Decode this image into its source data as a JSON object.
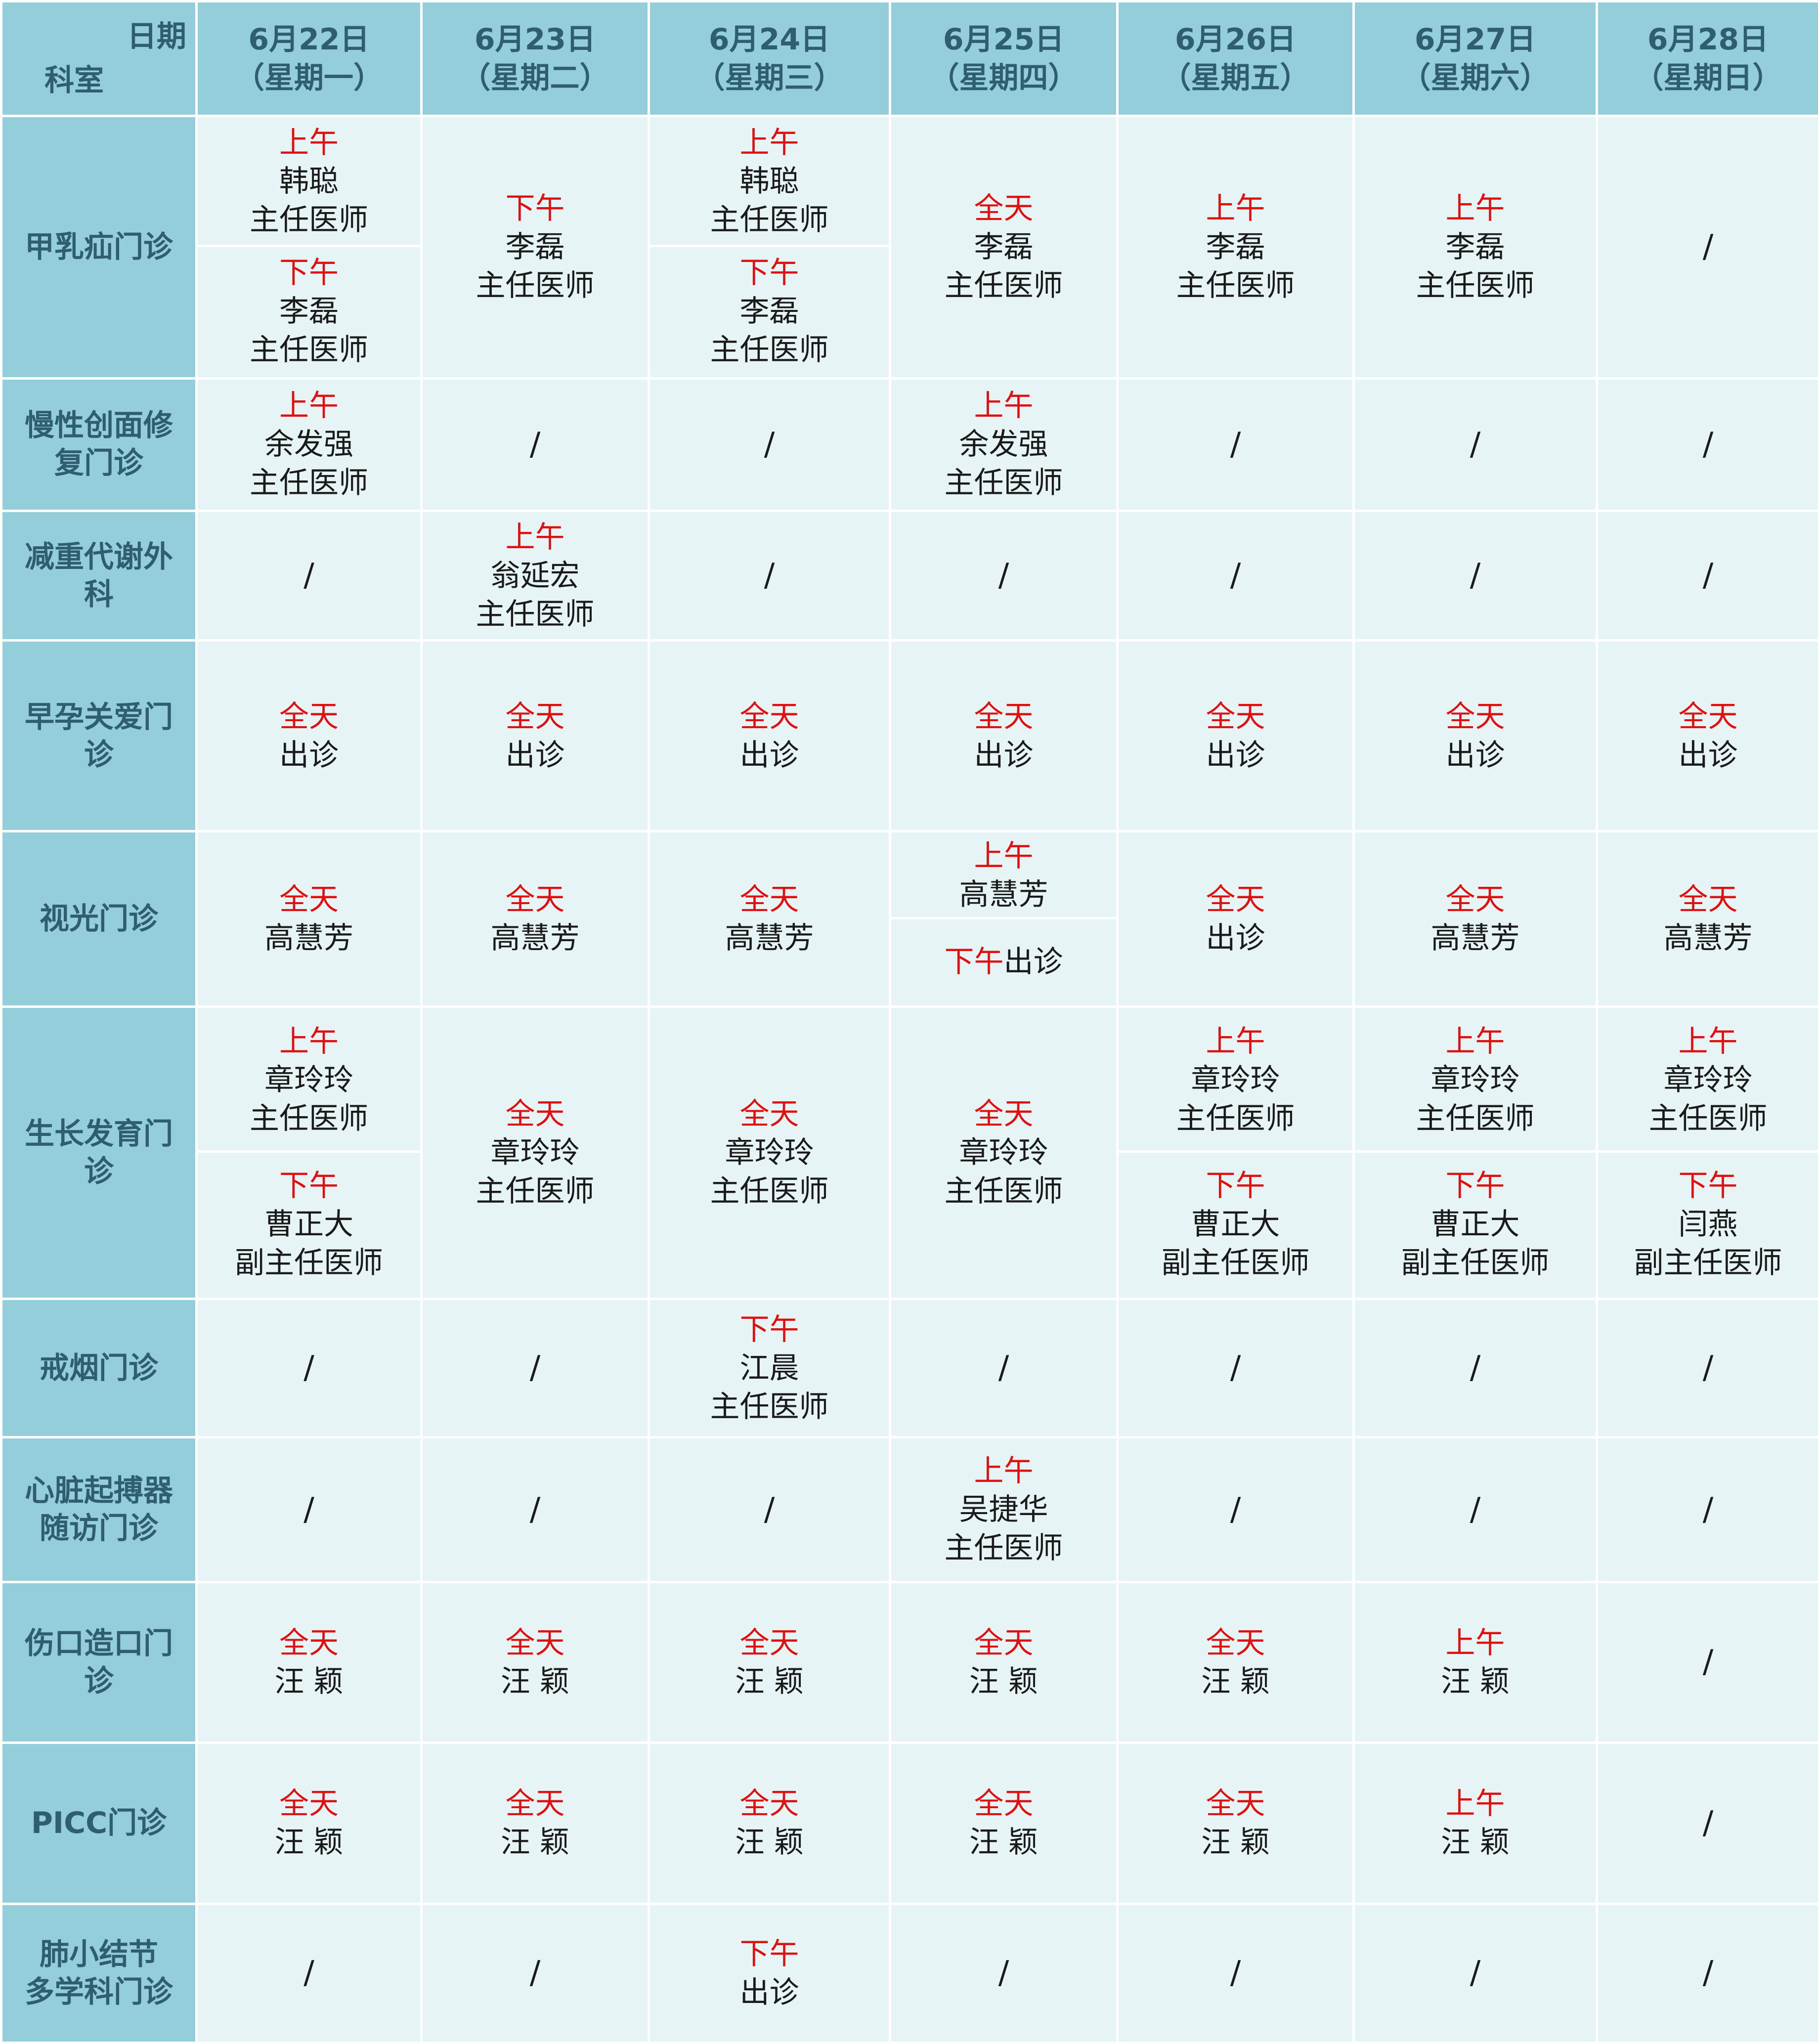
{
  "header": {
    "corner_date": "日期",
    "corner_dept": "科室",
    "days": [
      {
        "date": "6月22日",
        "weekday": "（星期一）"
      },
      {
        "date": "6月23日",
        "weekday": "（星期二）"
      },
      {
        "date": "6月24日",
        "weekday": "（星期三）"
      },
      {
        "date": "6月25日",
        "weekday": "（星期四）"
      },
      {
        "date": "6月26日",
        "weekday": "（星期五）"
      },
      {
        "date": "6月27日",
        "weekday": "（星期六）"
      },
      {
        "date": "6月28日",
        "weekday": "（星期日）"
      }
    ]
  },
  "colors": {
    "header_bg": "#95cedb",
    "cell_bg": "#e7f4f6",
    "period_red": "#e01010",
    "header_text": "#2f5f6e"
  },
  "rows": [
    {
      "dept": [
        "甲乳疝门诊"
      ],
      "cells": [
        {
          "top": {
            "period": "上午",
            "lines": [
              "韩聪",
              "主任医师"
            ]
          },
          "bottom": {
            "period": "下午",
            "lines": [
              "李磊",
              "主任医师"
            ]
          }
        },
        {
          "period": "下午",
          "lines": [
            "李磊",
            "主任医师"
          ]
        },
        {
          "top": {
            "period": "上午",
            "lines": [
              "韩聪",
              "主任医师"
            ]
          },
          "bottom": {
            "period": "下午",
            "lines": [
              "李磊",
              "主任医师"
            ]
          }
        },
        {
          "period": "全天",
          "lines": [
            "李磊",
            "主任医师"
          ]
        },
        {
          "period": "上午",
          "lines": [
            "李磊",
            "主任医师"
          ]
        },
        {
          "period": "上午",
          "lines": [
            "李磊",
            "主任医师"
          ]
        },
        {
          "slash": "/"
        }
      ]
    },
    {
      "dept": [
        "慢性创面修",
        "复门诊"
      ],
      "cells": [
        {
          "period": "上午",
          "lines": [
            "余发强",
            "主任医师"
          ]
        },
        {
          "slash": "/"
        },
        {
          "slash": "/"
        },
        {
          "period": "上午",
          "lines": [
            "余发强",
            "主任医师"
          ]
        },
        {
          "slash": "/"
        },
        {
          "slash": "/"
        },
        {
          "slash": "/"
        }
      ]
    },
    {
      "dept": [
        "减重代谢外",
        "科"
      ],
      "cells": [
        {
          "slash": "/"
        },
        {
          "period": "上午",
          "lines": [
            "翁延宏",
            "主任医师"
          ]
        },
        {
          "slash": "/"
        },
        {
          "slash": "/"
        },
        {
          "slash": "/"
        },
        {
          "slash": "/"
        },
        {
          "slash": "/"
        }
      ]
    },
    {
      "dept": [
        "早孕关爱门",
        "诊"
      ],
      "cells": [
        {
          "period": "全天",
          "lines": [
            "出诊"
          ]
        },
        {
          "period": "全天",
          "lines": [
            "出诊"
          ]
        },
        {
          "period": "全天",
          "lines": [
            "出诊"
          ]
        },
        {
          "period": "全天",
          "lines": [
            "出诊"
          ]
        },
        {
          "period": "全天",
          "lines": [
            "出诊"
          ]
        },
        {
          "period": "全天",
          "lines": [
            "出诊"
          ]
        },
        {
          "period": "全天",
          "lines": [
            "出诊"
          ]
        }
      ]
    },
    {
      "dept": [
        "视光门诊"
      ],
      "cells": [
        {
          "period": "全天",
          "lines": [
            "高慧芳"
          ]
        },
        {
          "period": "全天",
          "lines": [
            "高慧芳"
          ]
        },
        {
          "period": "全天",
          "lines": [
            "高慧芳"
          ]
        },
        {
          "top": {
            "period": "上午",
            "lines": [
              "高慧芳"
            ]
          },
          "bottom_inline": {
            "period": "下午",
            "text": "出诊"
          }
        },
        {
          "period": "全天",
          "lines": [
            "出诊"
          ]
        },
        {
          "period": "全天",
          "lines": [
            "高慧芳"
          ]
        },
        {
          "period": "全天",
          "lines": [
            "高慧芳"
          ]
        }
      ]
    },
    {
      "dept": [
        "生长发育门",
        "诊"
      ],
      "cells": [
        {
          "top": {
            "period": "上午",
            "lines": [
              "章玲玲",
              "主任医师"
            ]
          },
          "bottom": {
            "period": "下午",
            "lines": [
              "曹正大",
              "副主任医师"
            ]
          }
        },
        {
          "period": "全天",
          "lines": [
            "章玲玲",
            "主任医师"
          ]
        },
        {
          "period": "全天",
          "lines": [
            "章玲玲",
            "主任医师"
          ]
        },
        {
          "period": "全天",
          "lines": [
            "章玲玲",
            "主任医师"
          ]
        },
        {
          "top": {
            "period": "上午",
            "lines": [
              "章玲玲",
              "主任医师"
            ]
          },
          "bottom": {
            "period": "下午",
            "lines": [
              "曹正大",
              "副主任医师"
            ]
          }
        },
        {
          "top": {
            "period": "上午",
            "lines": [
              "章玲玲",
              "主任医师"
            ]
          },
          "bottom": {
            "period": "下午",
            "lines": [
              "曹正大",
              "副主任医师"
            ]
          }
        },
        {
          "top": {
            "period": "上午",
            "lines": [
              "章玲玲",
              "主任医师"
            ]
          },
          "bottom": {
            "period": "下午",
            "lines": [
              "闫燕",
              "副主任医师"
            ]
          }
        }
      ]
    },
    {
      "dept": [
        "戒烟门诊"
      ],
      "cells": [
        {
          "slash": "/"
        },
        {
          "slash": "/"
        },
        {
          "period": "下午",
          "lines": [
            "江晨",
            "主任医师"
          ]
        },
        {
          "slash": "/"
        },
        {
          "slash": "/"
        },
        {
          "slash": "/"
        },
        {
          "slash": "/"
        }
      ]
    },
    {
      "dept": [
        "心脏起搏器",
        "随访门诊"
      ],
      "cells": [
        {
          "slash": "/"
        },
        {
          "slash": "/"
        },
        {
          "slash": "/"
        },
        {
          "period": "上午",
          "lines": [
            "吴捷华",
            "主任医师"
          ]
        },
        {
          "slash": "/"
        },
        {
          "slash": "/"
        },
        {
          "slash": "/"
        }
      ]
    },
    {
      "dept": [
        "伤口造口门",
        "诊"
      ],
      "cells": [
        {
          "period": "全天",
          "lines": [
            "汪 颖"
          ]
        },
        {
          "period": "全天",
          "lines": [
            "汪 颖"
          ]
        },
        {
          "period": "全天",
          "lines": [
            "汪 颖"
          ]
        },
        {
          "period": "全天",
          "lines": [
            "汪 颖"
          ]
        },
        {
          "period": "全天",
          "lines": [
            "汪 颖"
          ]
        },
        {
          "period": "上午",
          "lines": [
            "汪 颖"
          ]
        },
        {
          "slash": "/"
        }
      ]
    },
    {
      "dept": [
        "PICC门诊"
      ],
      "cells": [
        {
          "period": "全天",
          "lines": [
            "汪 颖"
          ]
        },
        {
          "period": "全天",
          "lines": [
            "汪 颖"
          ]
        },
        {
          "period": "全天",
          "lines": [
            "汪 颖"
          ]
        },
        {
          "period": "全天",
          "lines": [
            "汪 颖"
          ]
        },
        {
          "period": "全天",
          "lines": [
            "汪 颖"
          ]
        },
        {
          "period": "上午",
          "lines": [
            "汪 颖"
          ]
        },
        {
          "slash": "/"
        }
      ]
    },
    {
      "dept": [
        "肺小结节",
        "多学科门诊"
      ],
      "cells": [
        {
          "slash": "/"
        },
        {
          "slash": "/"
        },
        {
          "period": "下午",
          "lines": [
            "出诊"
          ]
        },
        {
          "slash": "/"
        },
        {
          "slash": "/"
        },
        {
          "slash": "/"
        },
        {
          "slash": "/"
        }
      ]
    }
  ]
}
